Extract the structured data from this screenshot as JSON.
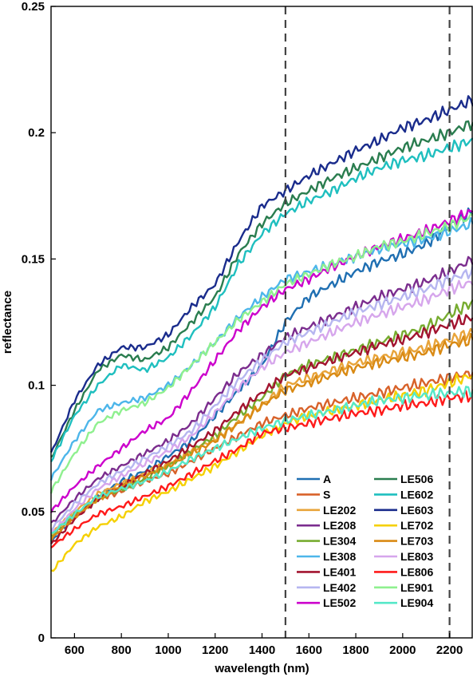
{
  "chart_data": {
    "type": "line",
    "xlabel": "wavelength (nm)",
    "ylabel": "reflectance",
    "xlim": [
      500,
      2300
    ],
    "ylim": [
      0,
      0.25
    ],
    "xticks": [
      600,
      800,
      1000,
      1200,
      1400,
      1600,
      1800,
      2000,
      2200
    ],
    "yticks": [
      0,
      0.05,
      0.1,
      0.15,
      0.2,
      0.25
    ],
    "ytick_labels": [
      "0",
      "0.05",
      "0.1",
      "0.15",
      "0.2",
      "0.25"
    ],
    "grid": false,
    "legend_position": "bottom-right",
    "vertical_lines": [
      1500,
      2200
    ],
    "x": [
      500,
      600,
      700,
      800,
      900,
      1000,
      1100,
      1200,
      1300,
      1400,
      1500,
      1600,
      1700,
      1800,
      1900,
      2000,
      2100,
      2200,
      2300
    ],
    "series": [
      {
        "name": "A",
        "color": "#1f6fb2",
        "values": [
          0.038,
          0.048,
          0.056,
          0.062,
          0.066,
          0.072,
          0.078,
          0.088,
          0.098,
          0.108,
          0.125,
          0.135,
          0.14,
          0.145,
          0.149,
          0.152,
          0.156,
          0.163,
          0.169
        ]
      },
      {
        "name": "S",
        "color": "#d8622a",
        "values": [
          0.04,
          0.048,
          0.055,
          0.058,
          0.062,
          0.065,
          0.07,
          0.075,
          0.08,
          0.085,
          0.088,
          0.091,
          0.093,
          0.095,
          0.097,
          0.099,
          0.101,
          0.103,
          0.105
        ]
      },
      {
        "name": "LE202",
        "color": "#e8a43a",
        "values": [
          0.041,
          0.05,
          0.057,
          0.061,
          0.065,
          0.069,
          0.074,
          0.079,
          0.085,
          0.092,
          0.1,
          0.103,
          0.106,
          0.109,
          0.111,
          0.113,
          0.115,
          0.118,
          0.121
        ]
      },
      {
        "name": "LE208",
        "color": "#7b2d8e",
        "values": [
          0.045,
          0.055,
          0.063,
          0.068,
          0.073,
          0.078,
          0.085,
          0.095,
          0.105,
          0.112,
          0.119,
          0.123,
          0.127,
          0.131,
          0.135,
          0.138,
          0.141,
          0.145,
          0.15
        ]
      },
      {
        "name": "LE304",
        "color": "#77ac30",
        "values": [
          0.04,
          0.049,
          0.055,
          0.059,
          0.063,
          0.068,
          0.074,
          0.08,
          0.088,
          0.095,
          0.104,
          0.108,
          0.111,
          0.114,
          0.117,
          0.12,
          0.123,
          0.128,
          0.133
        ]
      },
      {
        "name": "LE308",
        "color": "#4db6ea",
        "values": [
          0.063,
          0.078,
          0.09,
          0.093,
          0.095,
          0.1,
          0.108,
          0.117,
          0.127,
          0.135,
          0.142,
          0.145,
          0.148,
          0.151,
          0.154,
          0.156,
          0.158,
          0.161,
          0.164
        ]
      },
      {
        "name": "LE401",
        "color": "#a2142f",
        "values": [
          0.037,
          0.047,
          0.055,
          0.06,
          0.065,
          0.07,
          0.076,
          0.082,
          0.09,
          0.097,
          0.104,
          0.107,
          0.11,
          0.113,
          0.116,
          0.118,
          0.121,
          0.124,
          0.127
        ]
      },
      {
        "name": "LE402",
        "color": "#b6b6f0",
        "values": [
          0.043,
          0.053,
          0.061,
          0.066,
          0.071,
          0.076,
          0.082,
          0.092,
          0.102,
          0.11,
          0.117,
          0.121,
          0.125,
          0.129,
          0.132,
          0.135,
          0.138,
          0.142,
          0.145
        ]
      },
      {
        "name": "LE502",
        "color": "#cc00cc",
        "values": [
          0.05,
          0.06,
          0.068,
          0.075,
          0.082,
          0.087,
          0.098,
          0.11,
          0.122,
          0.131,
          0.138,
          0.142,
          0.147,
          0.151,
          0.155,
          0.158,
          0.161,
          0.165,
          0.169
        ]
      },
      {
        "name": "LE506",
        "color": "#2a7d4f",
        "values": [
          0.071,
          0.09,
          0.106,
          0.112,
          0.11,
          0.115,
          0.125,
          0.135,
          0.152,
          0.164,
          0.172,
          0.177,
          0.182,
          0.186,
          0.19,
          0.194,
          0.197,
          0.2,
          0.204
        ]
      },
      {
        "name": "LE602",
        "color": "#1fbfbf",
        "values": [
          0.07,
          0.088,
          0.1,
          0.108,
          0.106,
          0.111,
          0.12,
          0.131,
          0.148,
          0.16,
          0.168,
          0.173,
          0.177,
          0.182,
          0.186,
          0.189,
          0.191,
          0.194,
          0.197
        ]
      },
      {
        "name": "LE603",
        "color": "#1a2c8c",
        "values": [
          0.073,
          0.094,
          0.108,
          0.115,
          0.115,
          0.12,
          0.131,
          0.14,
          0.157,
          0.171,
          0.177,
          0.183,
          0.188,
          0.193,
          0.197,
          0.202,
          0.205,
          0.209,
          0.213
        ]
      },
      {
        "name": "LE702",
        "color": "#f5d000",
        "values": [
          0.026,
          0.037,
          0.044,
          0.048,
          0.054,
          0.058,
          0.063,
          0.068,
          0.074,
          0.08,
          0.085,
          0.088,
          0.09,
          0.092,
          0.094,
          0.096,
          0.098,
          0.101,
          0.104
        ]
      },
      {
        "name": "LE703",
        "color": "#d98a14",
        "values": [
          0.039,
          0.048,
          0.055,
          0.06,
          0.064,
          0.068,
          0.073,
          0.078,
          0.085,
          0.092,
          0.098,
          0.101,
          0.104,
          0.107,
          0.109,
          0.111,
          0.113,
          0.116,
          0.118
        ]
      },
      {
        "name": "LE803",
        "color": "#d6a6ec",
        "values": [
          0.041,
          0.051,
          0.059,
          0.064,
          0.069,
          0.074,
          0.08,
          0.089,
          0.099,
          0.107,
          0.113,
          0.117,
          0.121,
          0.125,
          0.128,
          0.131,
          0.134,
          0.138,
          0.141
        ]
      },
      {
        "name": "LE806",
        "color": "#ff1a1a",
        "values": [
          0.036,
          0.043,
          0.049,
          0.052,
          0.056,
          0.06,
          0.065,
          0.07,
          0.075,
          0.081,
          0.083,
          0.085,
          0.087,
          0.089,
          0.09,
          0.092,
          0.093,
          0.095,
          0.096
        ]
      },
      {
        "name": "LE901",
        "color": "#8ff08f",
        "values": [
          0.058,
          0.073,
          0.085,
          0.09,
          0.093,
          0.099,
          0.108,
          0.117,
          0.126,
          0.133,
          0.14,
          0.144,
          0.148,
          0.151,
          0.155,
          0.157,
          0.16,
          0.163,
          0.167
        ]
      },
      {
        "name": "LE904",
        "color": "#55e8c8",
        "values": [
          0.041,
          0.049,
          0.056,
          0.059,
          0.062,
          0.066,
          0.071,
          0.075,
          0.079,
          0.083,
          0.086,
          0.088,
          0.09,
          0.092,
          0.094,
          0.095,
          0.096,
          0.097,
          0.098
        ]
      }
    ]
  }
}
